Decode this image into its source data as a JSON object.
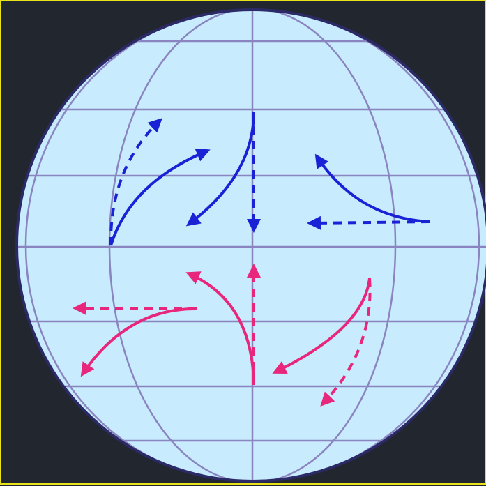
{
  "colors": {
    "background": "#22272f",
    "frame_border": "#e8e21a",
    "globe_fill": "#c8ecfd",
    "globe_outline": "#2b2a66",
    "grid_lines": "#8a84c0",
    "northern_arrows": "#1b22d6",
    "southern_arrows": "#e8277c"
  },
  "diagram": {
    "description_icons": [
      "globe-icon",
      "deflection-arrow-icon"
    ],
    "hemispheres": [
      {
        "name": "northern",
        "arrow_color": "#1b22d6",
        "arrow_pairs": 3
      },
      {
        "name": "southern",
        "arrow_color": "#e8277c",
        "arrow_pairs": 3
      }
    ]
  }
}
